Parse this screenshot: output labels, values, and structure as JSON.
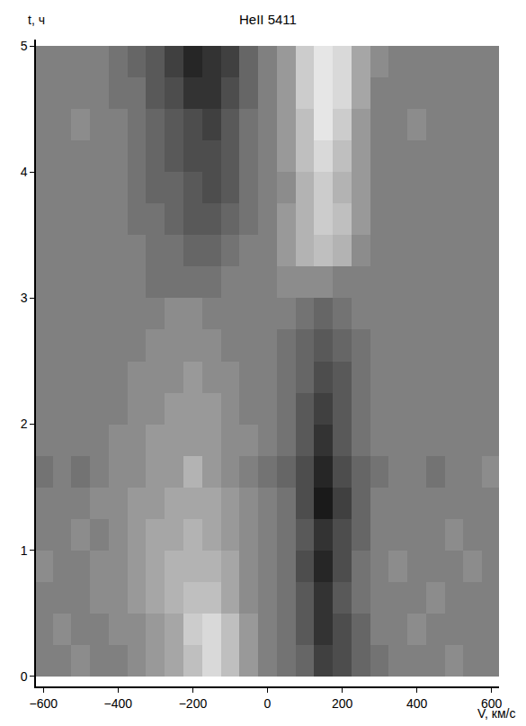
{
  "chart_data": {
    "type": "heatmap",
    "title": "HeII 5411",
    "x_label": "V, км/с",
    "y_label": "t, ч",
    "grid": false,
    "x": [
      -600,
      -550,
      -500,
      -450,
      -400,
      -350,
      -300,
      -250,
      -200,
      -150,
      -100,
      -50,
      0,
      50,
      100,
      150,
      200,
      250,
      300,
      350,
      400,
      450,
      500,
      550,
      600
    ],
    "y": [
      0.125,
      0.375,
      0.625,
      0.875,
      1.125,
      1.375,
      1.625,
      1.875,
      2.125,
      2.375,
      2.625,
      2.875,
      3.125,
      3.375,
      3.625,
      3.875,
      4.125,
      4.375,
      4.625,
      4.875
    ],
    "z": [
      [
        0,
        0,
        1,
        0,
        0,
        1,
        2,
        3,
        5,
        7,
        5,
        2,
        0,
        -1,
        -2,
        -5,
        -4,
        -2,
        -1,
        0,
        0,
        0,
        1,
        0,
        0
      ],
      [
        0,
        1,
        0,
        0,
        1,
        1,
        2,
        3,
        6,
        7,
        5,
        2,
        0,
        -1,
        -3,
        -6,
        -4,
        -2,
        0,
        0,
        1,
        0,
        0,
        0,
        0
      ],
      [
        0,
        0,
        0,
        1,
        1,
        2,
        3,
        4,
        5,
        5,
        3,
        1,
        0,
        -1,
        -3,
        -6,
        -3,
        -1,
        0,
        0,
        0,
        1,
        0,
        0,
        0
      ],
      [
        1,
        0,
        0,
        1,
        1,
        2,
        3,
        4,
        4,
        4,
        3,
        1,
        0,
        -1,
        -4,
        -7,
        -4,
        -1,
        0,
        1,
        0,
        0,
        0,
        1,
        0
      ],
      [
        0,
        0,
        1,
        0,
        1,
        2,
        3,
        3,
        4,
        3,
        2,
        1,
        0,
        -1,
        -3,
        -6,
        -4,
        -2,
        0,
        0,
        0,
        0,
        1,
        0,
        0
      ],
      [
        0,
        0,
        0,
        1,
        1,
        2,
        2,
        3,
        3,
        3,
        2,
        1,
        0,
        -1,
        -4,
        -8,
        -5,
        -2,
        0,
        0,
        0,
        0,
        0,
        0,
        0
      ],
      [
        -1,
        0,
        -1,
        0,
        1,
        1,
        2,
        2,
        4,
        2,
        1,
        0,
        -1,
        -2,
        -4,
        -7,
        -4,
        -2,
        -1,
        0,
        0,
        -1,
        0,
        0,
        1
      ],
      [
        0,
        0,
        0,
        0,
        1,
        1,
        2,
        2,
        2,
        2,
        1,
        1,
        0,
        -1,
        -3,
        -6,
        -3,
        -1,
        0,
        0,
        0,
        0,
        0,
        0,
        0
      ],
      [
        0,
        0,
        0,
        0,
        0,
        1,
        1,
        2,
        2,
        2,
        1,
        0,
        0,
        -1,
        -3,
        -5,
        -3,
        -1,
        0,
        0,
        0,
        0,
        0,
        0,
        0
      ],
      [
        0,
        0,
        0,
        0,
        0,
        1,
        1,
        1,
        2,
        1,
        1,
        0,
        0,
        -1,
        -2,
        -4,
        -3,
        -1,
        0,
        0,
        0,
        0,
        0,
        0,
        0
      ],
      [
        0,
        0,
        0,
        0,
        0,
        0,
        1,
        1,
        1,
        1,
        0,
        0,
        0,
        -1,
        -2,
        -3,
        -2,
        -1,
        0,
        0,
        0,
        0,
        0,
        0,
        0
      ],
      [
        0,
        0,
        0,
        0,
        0,
        0,
        0,
        1,
        1,
        0,
        0,
        0,
        0,
        0,
        -1,
        -2,
        -1,
        0,
        0,
        0,
        0,
        0,
        0,
        0,
        0
      ],
      [
        0,
        0,
        0,
        0,
        0,
        0,
        -1,
        -1,
        -1,
        -1,
        0,
        0,
        0,
        1,
        1,
        1,
        0,
        0,
        0,
        0,
        0,
        0,
        0,
        0,
        0
      ],
      [
        0,
        0,
        0,
        0,
        0,
        0,
        -1,
        -1,
        -2,
        -2,
        -1,
        0,
        0,
        2,
        4,
        5,
        4,
        1,
        0,
        0,
        0,
        0,
        0,
        0,
        0
      ],
      [
        0,
        0,
        0,
        0,
        0,
        -1,
        -1,
        -2,
        -3,
        -3,
        -2,
        -1,
        0,
        2,
        4,
        6,
        5,
        2,
        0,
        0,
        0,
        0,
        0,
        0,
        0
      ],
      [
        0,
        0,
        0,
        0,
        0,
        -1,
        -2,
        -2,
        -3,
        -4,
        -3,
        -1,
        0,
        1,
        4,
        6,
        4,
        2,
        0,
        0,
        0,
        0,
        0,
        0,
        0
      ],
      [
        0,
        0,
        0,
        0,
        0,
        -1,
        -2,
        -3,
        -4,
        -4,
        -3,
        -1,
        0,
        2,
        5,
        7,
        5,
        2,
        0,
        0,
        0,
        0,
        0,
        0,
        0
      ],
      [
        0,
        0,
        1,
        0,
        0,
        -1,
        -2,
        -3,
        -4,
        -5,
        -3,
        -1,
        0,
        2,
        5,
        8,
        6,
        2,
        0,
        0,
        1,
        0,
        0,
        0,
        0
      ],
      [
        0,
        0,
        0,
        0,
        -1,
        -1,
        -3,
        -4,
        -6,
        -6,
        -4,
        -2,
        0,
        2,
        6,
        8,
        7,
        3,
        0,
        0,
        0,
        0,
        0,
        0,
        0
      ],
      [
        0,
        0,
        0,
        0,
        -1,
        -2,
        -3,
        -5,
        -7,
        -6,
        -5,
        -2,
        0,
        2,
        6,
        8,
        7,
        3,
        1,
        0,
        0,
        0,
        0,
        0,
        0
      ]
    ],
    "zlim": [
      -10,
      10
    ],
    "xlim": [
      -620,
      620
    ],
    "ylim": [
      -0.08,
      5.05
    ],
    "xticks": [
      {
        "value": -600,
        "label": "−600"
      },
      {
        "value": -400,
        "label": "−400"
      },
      {
        "value": -200,
        "label": "−200"
      },
      0,
      200,
      400,
      600
    ],
    "yticks": [
      0,
      1,
      2,
      3,
      4,
      5
    ]
  }
}
